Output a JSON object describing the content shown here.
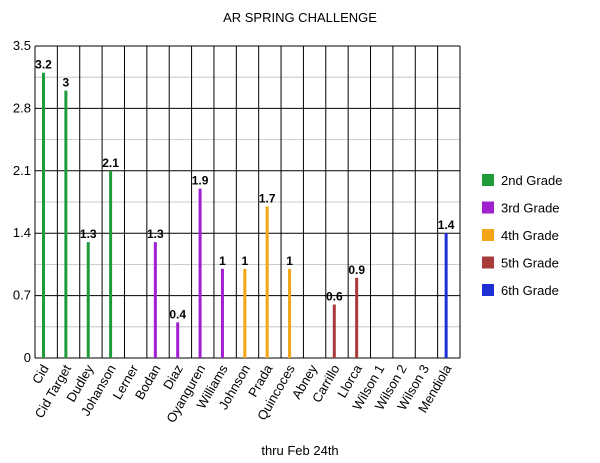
{
  "chart_data": {
    "type": "bar",
    "title": "AR SPRING CHALLENGE",
    "xlabel": "thru Feb 24th",
    "ylabel": "",
    "ylim": [
      0,
      3.5
    ],
    "yticks": [
      "0",
      "0.7",
      "1.4",
      "2.1",
      "2.8",
      "3.5"
    ],
    "grid": true,
    "legend_position": "right",
    "categories": [
      "Cid",
      "Cid Target",
      "Dudley",
      "Johanson",
      "Lerner",
      "Bodan",
      "Diaz",
      "Oyanguren",
      "Williams",
      "Johnson",
      "Prada",
      "Quincoces",
      "Abney",
      "Carrillo",
      "Llorca",
      "Wilson 1",
      "Wilson 2",
      "Wilson 3",
      "Mendiola"
    ],
    "series": [
      {
        "name": "2nd Grade",
        "color": "#1e9b3a",
        "values": [
          3.2,
          3,
          1.3,
          2.1,
          null,
          null,
          null,
          null,
          null,
          null,
          null,
          null,
          null,
          null,
          null,
          null,
          null,
          null,
          null
        ],
        "labels": [
          "3.2",
          "3",
          "1.3",
          "2.1"
        ]
      },
      {
        "name": "3rd Grade",
        "color": "#a020d0",
        "values": [
          null,
          null,
          null,
          null,
          null,
          1.3,
          0.4,
          1.9,
          1,
          null,
          null,
          null,
          null,
          null,
          null,
          null,
          null,
          null,
          null
        ],
        "labels": [
          "1.3",
          "0.4",
          "1.9",
          "1"
        ]
      },
      {
        "name": "4th Grade",
        "color": "#f2a516",
        "values": [
          null,
          null,
          null,
          null,
          null,
          null,
          null,
          null,
          null,
          1,
          1.7,
          1,
          null,
          null,
          null,
          null,
          null,
          null,
          null
        ],
        "labels": [
          "1",
          "1.7",
          "1"
        ]
      },
      {
        "name": "5th Grade",
        "color": "#a83a3a",
        "values": [
          null,
          null,
          null,
          null,
          null,
          null,
          null,
          null,
          null,
          null,
          null,
          null,
          null,
          0.6,
          0.9,
          null,
          null,
          null,
          null
        ],
        "labels": [
          "0.6",
          "0.9"
        ]
      },
      {
        "name": "6th Grade",
        "color": "#1f2fd6",
        "values": [
          null,
          null,
          null,
          null,
          null,
          null,
          null,
          null,
          null,
          null,
          null,
          null,
          null,
          null,
          null,
          null,
          null,
          null,
          1.4
        ],
        "labels": [
          "1.4"
        ]
      }
    ]
  }
}
